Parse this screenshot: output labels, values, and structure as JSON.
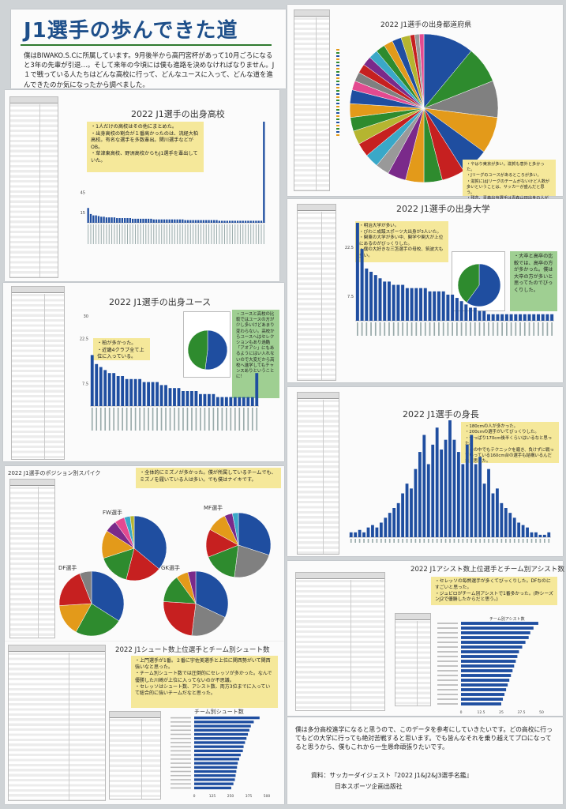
{
  "intro": {
    "title": "J1選手の歩んできた道",
    "text": "僕はBIWAKO.S.Cに所属しています。9月後半から高円宮杯があって10月ごろになると3年の先輩が引退…。そして来年の今頃には僕も進路を決めなければなりません。J１で戦っている人たちはどんな高校に行って、どんなユースに入って、どんな道を進んできたのか気になったから調べました。"
  },
  "high_school": {
    "title": "2022 J1選手の出身高校",
    "notes": [
      "・1人だけの高校はその他にまとめた。",
      "・出身高校の割合が１番高かったのは、流経大柏高校。有名な選手を多数輩出。関川選手などがOB。",
      "・草津東高校、野洲高校からもJ1選手を輩出していた。"
    ],
    "chart_data": {
      "type": "bar",
      "ylim": [
        0,
        150
      ],
      "y_ticks": [
        "15",
        "45"
      ],
      "values": [
        22,
        13,
        11,
        11,
        10,
        9,
        9,
        8,
        8,
        8,
        8,
        7,
        7,
        7,
        7,
        7,
        7,
        6,
        6,
        6,
        6,
        6,
        6,
        6,
        6,
        5,
        5,
        5,
        5,
        5,
        5,
        5,
        5,
        5,
        5,
        5,
        5,
        4,
        4,
        4,
        4,
        4,
        4,
        4,
        4,
        4,
        4,
        4,
        4,
        4,
        3,
        3,
        3,
        3,
        3,
        3,
        3,
        3,
        3,
        3,
        3,
        3,
        3,
        3,
        3,
        3,
        3,
        150
      ]
    }
  },
  "youth": {
    "title": "2022 J1選手の出身ユース",
    "notes": [
      "・柏が多かった。",
      "・近畿4クラブ全て上位に入っている。"
    ],
    "green_note": "・ユースと高校の比較ではユースの方が少し多いけどあまり変わらない。高校からユースへはセレクションもあり過酷「アオアシ」にもあるようにはい入れないので大変だから高校へ進学してもチャンスありということに！",
    "pie_data": [
      {
        "value": 0.52,
        "color": "#1f4ea0"
      },
      {
        "value": 0.48,
        "color": "#2e8b2e"
      }
    ],
    "chart_data": {
      "type": "bar",
      "ylim": [
        0,
        30
      ],
      "y_ticks": [
        "30",
        "22.5",
        "7.5"
      ],
      "values": [
        17,
        14,
        13,
        12,
        11,
        11,
        10,
        10,
        9,
        9,
        9,
        9,
        8,
        8,
        8,
        8,
        7,
        7,
        6,
        6,
        6,
        5,
        5,
        5,
        5,
        4,
        4,
        4,
        4,
        3,
        3,
        3,
        3,
        3,
        3,
        3,
        3,
        3,
        11
      ]
    }
  },
  "position": {
    "title": "2022 J1選手のポジション別スパイク",
    "note": "・全体的にミズノが多かった。僕が所属しているチームでも、ミズノを履いている人は多い。でも僕はナイキです。",
    "pies": [
      {
        "label": "FW選手",
        "slices": [
          {
            "value": 36,
            "color": "#1f4ea0"
          },
          {
            "value": 18,
            "color": "#c62020"
          },
          {
            "value": 16,
            "color": "#2e8b2e"
          },
          {
            "value": 14,
            "color": "#e39a1a"
          },
          {
            "value": 6,
            "color": "#7a2a8a"
          },
          {
            "value": 5,
            "color": "#e34a90"
          },
          {
            "value": 3,
            "color": "#3aa8c8"
          },
          {
            "value": 2,
            "color": "#b5b530"
          }
        ]
      },
      {
        "label": "MF選手",
        "slices": [
          {
            "value": 30,
            "color": "#1f4ea0"
          },
          {
            "value": 22,
            "color": "#808080"
          },
          {
            "value": 17,
            "color": "#2e8b2e"
          },
          {
            "value": 14,
            "color": "#c62020"
          },
          {
            "value": 10,
            "color": "#e39a1a"
          },
          {
            "value": 4,
            "color": "#7a2a8a"
          },
          {
            "value": 3,
            "color": "#3aa8c8"
          }
        ]
      },
      {
        "label": "DF選手",
        "slices": [
          {
            "value": 34,
            "color": "#1f4ea0"
          },
          {
            "value": 24,
            "color": "#2e8b2e"
          },
          {
            "value": 16,
            "color": "#e39a1a"
          },
          {
            "value": 20,
            "color": "#c62020"
          },
          {
            "value": 6,
            "color": "#808080"
          }
        ]
      },
      {
        "label": "GK選手",
        "slices": [
          {
            "value": 32,
            "color": "#1f4ea0"
          },
          {
            "value": 20,
            "color": "#808080"
          },
          {
            "value": 24,
            "color": "#c62020"
          },
          {
            "value": 14,
            "color": "#2e8b2e"
          },
          {
            "value": 6,
            "color": "#e39a1a"
          },
          {
            "value": 4,
            "color": "#7a2a8a"
          }
        ]
      }
    ]
  },
  "shoot": {
    "title": "2022 J1シュート数上位選手とチーム別シュート数",
    "notes": [
      "・上門選手が1番。２番に宇佐美選手と上位に関西勢がいて関西強いなと思った。",
      "・チーム別シュート数では圧倒的にセレッソが多かった。なんで優勝した川崎が上位に入ってないのか不思議。",
      "・セレッソはシュート数、アシスト数、両方3位までに入っていて総合的に強いチームだなと思った。"
    ],
    "team_chart_title": "チーム別シュート数",
    "chart_data": {
      "type": "bar",
      "x_ticks": [
        "0",
        "125",
        "250",
        "375",
        "500"
      ],
      "values": [
        450,
        410,
        390,
        380,
        370,
        360,
        350,
        340,
        335,
        320,
        310,
        300,
        295,
        290,
        285,
        280,
        270,
        255
      ]
    }
  },
  "prefecture": {
    "title": "2022 J1選手の出身都道府県",
    "notes": [
      "・やはり東京が多い。滋賀も意外と多かった。",
      "・Jリーグのユースがあるところが多い。",
      "・滋賀にはJリーグのチームがないけど人数が多いということは、サッカーが盛んだと思う。",
      "・残念、青森出身選手は青森山田出身の人がいないのがびっくり!!"
    ],
    "pie_data": [
      {
        "value": 11,
        "color": "#1f4ea0"
      },
      {
        "value": 8,
        "color": "#2e8b2e"
      },
      {
        "value": 8,
        "color": "#808080"
      },
      {
        "value": 8,
        "color": "#e39a1a"
      },
      {
        "value": 6,
        "color": "#1f4ea0"
      },
      {
        "value": 5,
        "color": "#c62020"
      },
      {
        "value": 4,
        "color": "#2e8b2e"
      },
      {
        "value": 4,
        "color": "#e39a1a"
      },
      {
        "value": 4,
        "color": "#7a2a8a"
      },
      {
        "value": 3,
        "color": "#999999"
      },
      {
        "value": 3,
        "color": "#3aa8c8"
      },
      {
        "value": 3,
        "color": "#c62020"
      },
      {
        "value": 3,
        "color": "#b5b530"
      },
      {
        "value": 3,
        "color": "#2e8b2e"
      },
      {
        "value": 3,
        "color": "#e39a1a"
      },
      {
        "value": 3,
        "color": "#1f4ea0"
      },
      {
        "value": 2,
        "color": "#e34a90"
      },
      {
        "value": 2,
        "color": "#808080"
      },
      {
        "value": 2,
        "color": "#c62020"
      },
      {
        "value": 2,
        "color": "#7a2a8a"
      },
      {
        "value": 2,
        "color": "#3aa8c8"
      },
      {
        "value": 2,
        "color": "#2e8b2e"
      },
      {
        "value": 2,
        "color": "#e39a1a"
      },
      {
        "value": 2,
        "color": "#1f4ea0"
      },
      {
        "value": 2,
        "color": "#b5b530"
      },
      {
        "value": 1,
        "color": "#c62020"
      },
      {
        "value": 1,
        "color": "#999999"
      },
      {
        "value": 1,
        "color": "#e34a90"
      }
    ]
  },
  "university": {
    "title": "2022 J1選手の出身大学",
    "notes": [
      "・明治大学が多い。",
      "・びわこ成蹊スポーツ大出身が3人いた。",
      "・関東の大学が多い中、関学や関大が上位にあるのがびっくりした。",
      "・僕の大好きな三笘選手の母校、筑波大も多い。"
    ],
    "green_note": "・大卒と高卒の比較では、高卒の方が多かった。僕は大卒の方が多いと思ってたのでびっくりした。",
    "pie_data": [
      {
        "value": 0.6,
        "color": "#1f4ea0"
      },
      {
        "value": 0.4,
        "color": "#2e8b2e"
      }
    ],
    "chart_data": {
      "type": "bar",
      "ylim": [
        0,
        30
      ],
      "y_ticks": [
        "22.5",
        "7.5"
      ],
      "values": [
        30,
        22,
        16,
        15,
        14,
        13,
        12,
        12,
        11,
        11,
        11,
        10,
        10,
        10,
        10,
        10,
        9,
        9,
        9,
        9,
        8,
        8,
        7,
        6,
        5,
        4,
        4,
        3,
        3,
        2,
        2,
        2,
        2,
        2,
        2,
        2,
        2,
        2,
        2,
        2,
        2,
        2,
        2,
        2
      ]
    }
  },
  "height": {
    "title": "2022 J1選手の身長",
    "notes": [
      "・180cmの人が多かった。",
      "・200cmの選手がいてびっくりした。",
      "・やっぱり170cm後半くらいはいるなと思った。",
      "・その中でもテクニックを磨き、負けずに戦っていっている160cm台の選手も結構いるんだなと思った。"
    ],
    "chart_data": {
      "type": "bar",
      "values": [
        2,
        2,
        3,
        2,
        4,
        5,
        4,
        6,
        8,
        10,
        12,
        14,
        18,
        22,
        20,
        28,
        35,
        42,
        30,
        38,
        45,
        36,
        40,
        48,
        40,
        35,
        30,
        38,
        42,
        30,
        33,
        22,
        28,
        18,
        20,
        14,
        12,
        10,
        8,
        6,
        5,
        4,
        2,
        2,
        1,
        1,
        2
      ]
    }
  },
  "assist": {
    "title": "2022 J1アシスト数上位選手とチーム別アシスト数",
    "notes": [
      "・セレッソの毎熊選手が多くてびっくりした。DFなのにすごいと思った。",
      "・ジュビロがチーム別アシストで1番多かった。(昨シーズンJ2で優勝したからだと思う。)"
    ],
    "team_chart_title": "チーム別アシスト数",
    "chart_data": {
      "type": "bar",
      "x_ticks": [
        "0",
        "12.5",
        "25",
        "37.5",
        "50"
      ],
      "values": [
        48,
        45,
        43,
        42,
        40,
        38,
        36,
        35,
        34,
        33,
        32,
        31,
        30,
        29,
        28,
        27,
        26,
        25
      ]
    }
  },
  "conclusion": {
    "text": "僕は多分高校進学になると思うので、このデータを参考にしていきたいです。どの高校に行ってもどの大学に行っても絶対苦戦すると思います。でも皆んなそれを乗り越えてプロになってると思うから、僕もこれから一生懸命頑張りたいです。",
    "source": "資料：サッカーダイジェスト『2022 J1&J2&J3選手名鑑』",
    "publisher": "日本スポーツ企画出版社"
  }
}
